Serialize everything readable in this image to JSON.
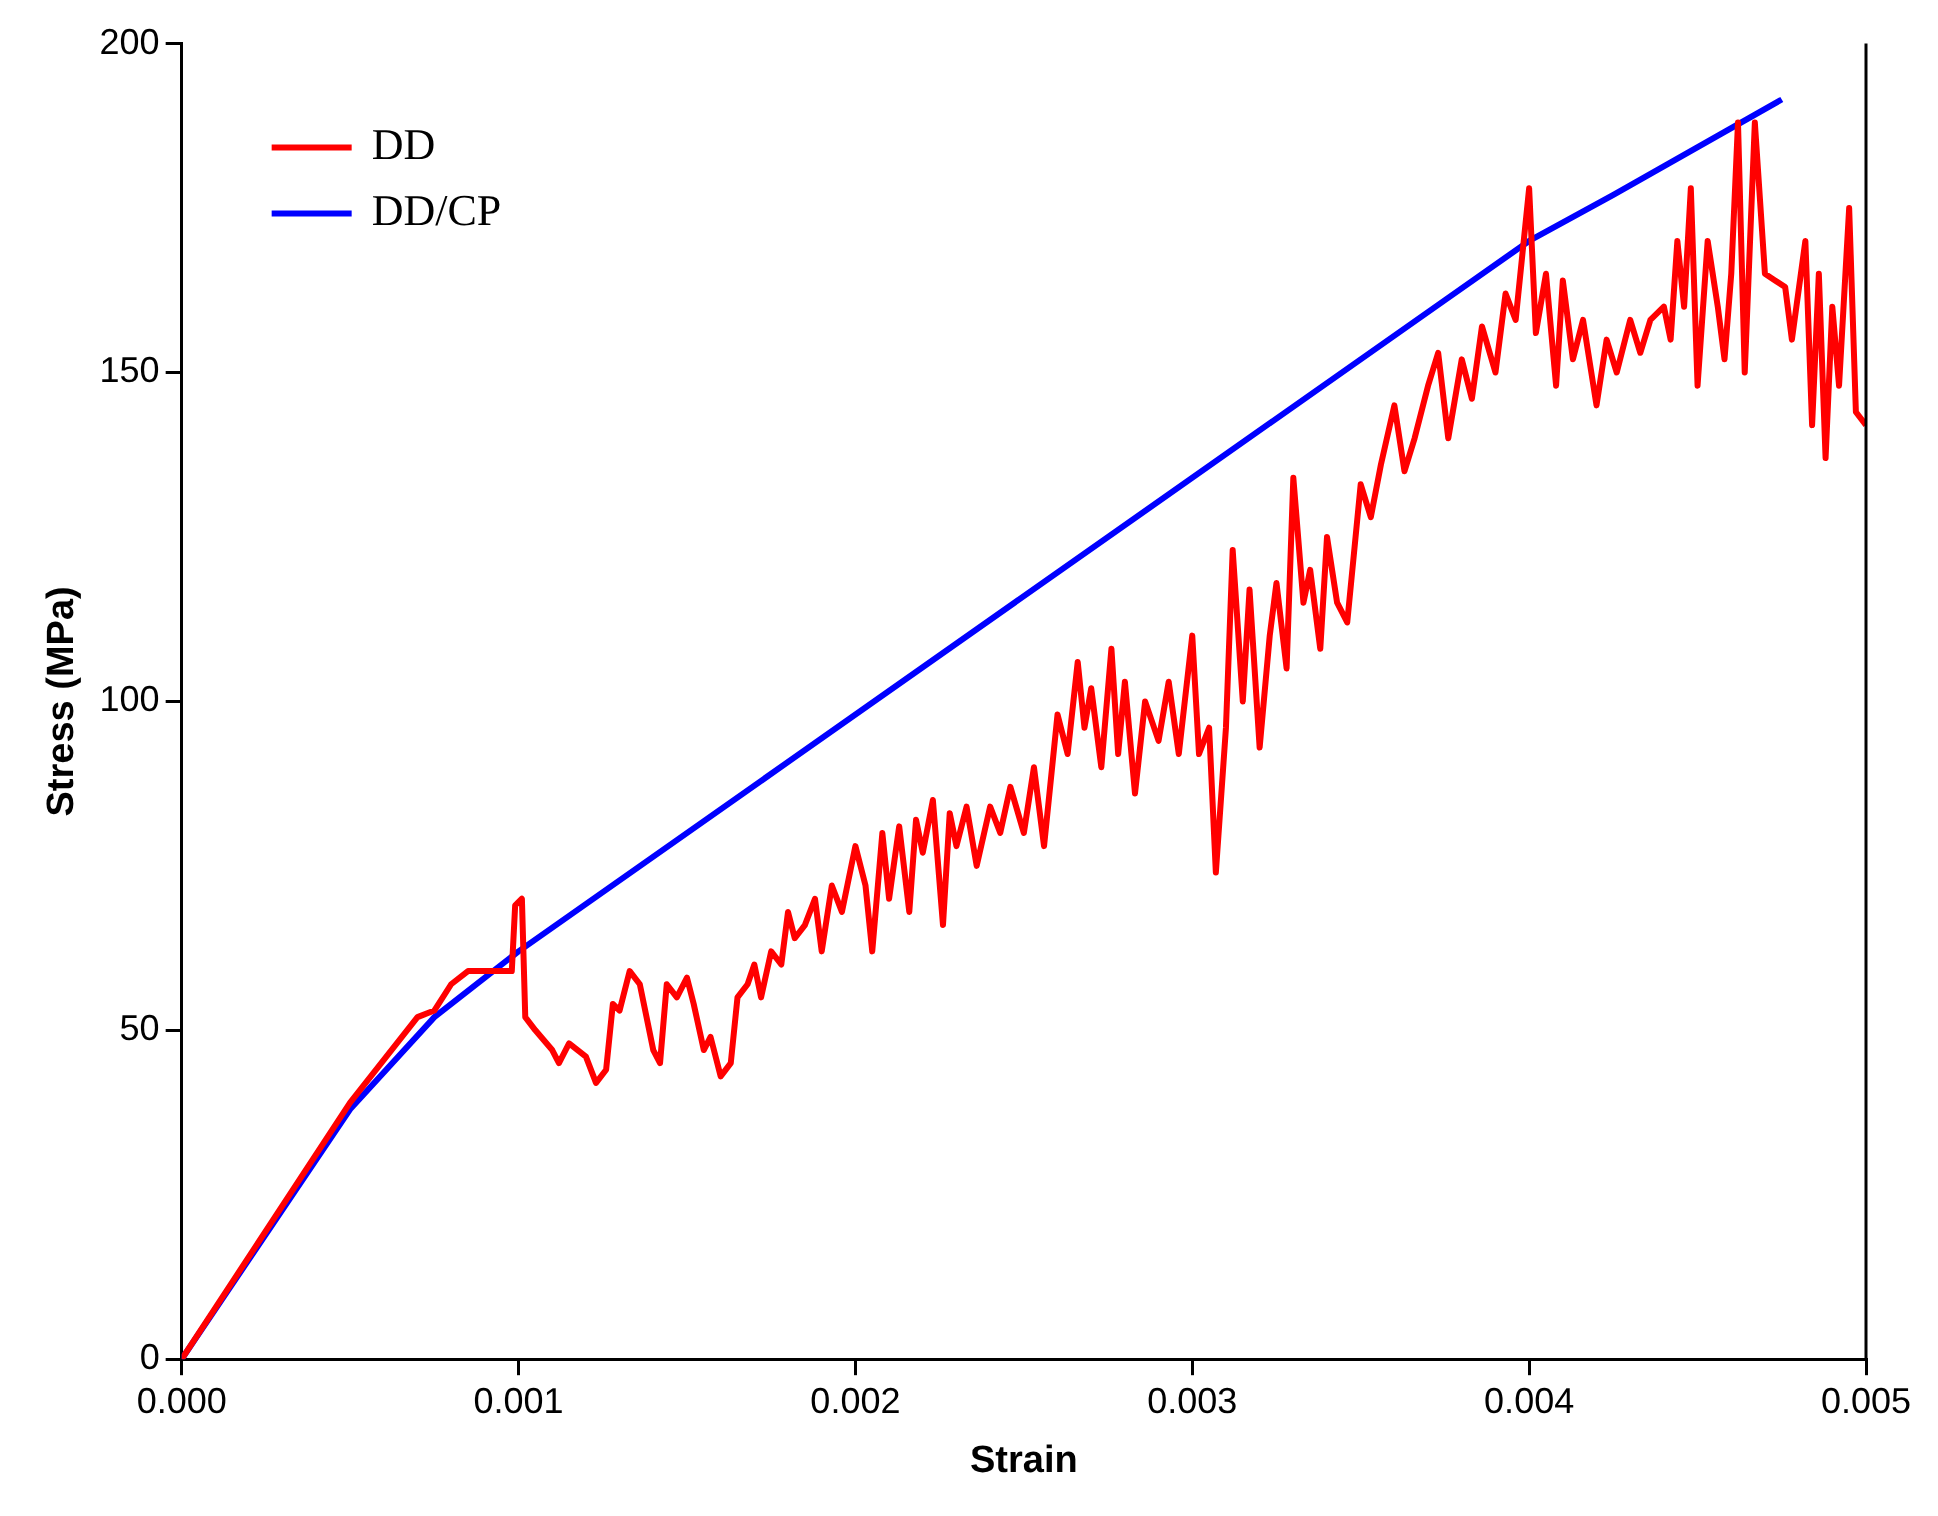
{
  "chart_data": {
    "type": "line",
    "xlabel": "Strain",
    "ylabel": "Stress (MPa)",
    "xlim": [
      0,
      0.005
    ],
    "xticks": [
      {
        "value": 0,
        "label": "0.000"
      },
      {
        "value": 0.001,
        "label": "0.001"
      },
      {
        "value": 0.002,
        "label": "0.002"
      },
      {
        "value": 0.003,
        "label": "0.003"
      },
      {
        "value": 0.004,
        "label": "0.004"
      },
      {
        "value": 0.005,
        "label": "0.005"
      }
    ],
    "ylim": [
      0,
      200
    ],
    "yticks": [
      0,
      50,
      100,
      150,
      200
    ],
    "grid": false,
    "legend": "top left",
    "marker": "none",
    "line_style": "solid",
    "series": [
      {
        "name": "DD",
        "color": "#ff0000",
        "x": [
          0,
          0.0005,
          0.0007,
          0.00075,
          0.0008,
          0.00085,
          0.00095,
          0.00098,
          0.00099,
          0.00101,
          0.00102,
          0.00105,
          0.0011,
          0.00112,
          0.00115,
          0.0012,
          0.00123,
          0.00126,
          0.00128,
          0.0013,
          0.00133,
          0.00136,
          0.00138,
          0.0014,
          0.00142,
          0.00144,
          0.00147,
          0.0015,
          0.00152,
          0.00155,
          0.00157,
          0.0016,
          0.00163,
          0.00165,
          0.00168,
          0.0017,
          0.00172,
          0.00175,
          0.00178,
          0.0018,
          0.00182,
          0.00185,
          0.00188,
          0.0019,
          0.00193,
          0.00196,
          0.002,
          0.00203,
          0.00205,
          0.00208,
          0.0021,
          0.00213,
          0.00216,
          0.00218,
          0.0022,
          0.00223,
          0.00226,
          0.00228,
          0.0023,
          0.00233,
          0.00236,
          0.0024,
          0.00243,
          0.00246,
          0.0025,
          0.00253,
          0.00256,
          0.0026,
          0.00263,
          0.00266,
          0.00268,
          0.0027,
          0.00273,
          0.00276,
          0.00278,
          0.0028,
          0.00283,
          0.00286,
          0.0029,
          0.00293,
          0.00296,
          0.003,
          0.00302,
          0.00305,
          0.00307,
          0.0031,
          0.00312,
          0.00315,
          0.00317,
          0.0032,
          0.00323,
          0.00325,
          0.00328,
          0.0033,
          0.00333,
          0.00335,
          0.00338,
          0.0034,
          0.00343,
          0.00346,
          0.0035,
          0.00353,
          0.00356,
          0.0036,
          0.00363,
          0.00366,
          0.0037,
          0.00373,
          0.00376,
          0.0038,
          0.00383,
          0.00386,
          0.0039,
          0.00393,
          0.00396,
          0.004,
          0.00402,
          0.00405,
          0.00408,
          0.0041,
          0.00413,
          0.00416,
          0.0042,
          0.00423,
          0.00426,
          0.0043,
          0.00433,
          0.00436,
          0.0044,
          0.00442,
          0.00444,
          0.00446,
          0.00448,
          0.0045,
          0.00453,
          0.00456,
          0.00458,
          0.0046,
          0.00462,
          0.00464,
          0.00467,
          0.0047,
          0.00473,
          0.00476,
          0.00478,
          0.00482,
          0.00484,
          0.00486,
          0.00488,
          0.0049,
          0.00492,
          0.00495,
          0.00497,
          0.005
        ],
        "values": [
          0,
          39,
          52,
          53,
          57,
          59,
          59,
          59,
          69,
          70,
          52,
          50,
          47,
          45,
          48,
          46,
          42,
          44,
          54,
          53,
          59,
          57,
          52,
          47,
          45,
          57,
          55,
          58,
          54,
          47,
          49,
          43,
          45,
          55,
          57,
          60,
          55,
          62,
          60,
          68,
          64,
          66,
          70,
          62,
          72,
          68,
          78,
          72,
          62,
          80,
          70,
          81,
          68,
          82,
          77,
          85,
          66,
          83,
          78,
          84,
          75,
          84,
          80,
          87,
          80,
          90,
          78,
          98,
          92,
          106,
          96,
          102,
          90,
          108,
          92,
          103,
          86,
          100,
          94,
          103,
          92,
          110,
          92,
          96,
          74,
          96,
          123,
          100,
          117,
          93,
          110,
          118,
          105,
          134,
          115,
          120,
          108,
          125,
          115,
          112,
          133,
          128,
          136,
          145,
          135,
          140,
          148,
          153,
          140,
          152,
          146,
          157,
          150,
          162,
          158,
          178,
          156,
          165,
          148,
          164,
          152,
          158,
          145,
          155,
          150,
          158,
          153,
          158,
          160,
          155,
          170,
          160,
          178,
          148,
          170,
          160,
          152,
          165,
          188,
          150,
          188,
          165,
          164,
          163,
          155,
          170,
          142,
          165,
          137,
          160,
          148,
          175,
          144,
          142
        ]
      },
      {
        "name": "DD/CP",
        "color": "#0000ff",
        "x": [
          0,
          0.0005,
          0.00075,
          0.001,
          0.00375,
          0.004,
          0.00425,
          0.00475
        ],
        "values": [
          0,
          38,
          52,
          62,
          161,
          170,
          177,
          191.5
        ]
      }
    ]
  }
}
